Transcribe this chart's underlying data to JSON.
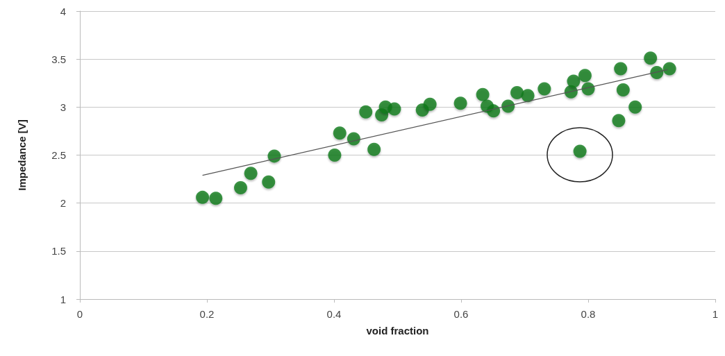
{
  "chart_data": {
    "type": "scatter",
    "xlabel": "void fraction",
    "ylabel": "Impedance [V]",
    "xlim": [
      0,
      1
    ],
    "xticks": [
      0,
      0.2,
      0.4,
      0.6,
      0.8,
      1
    ],
    "ylim": [
      1,
      4
    ],
    "yticks": [
      1,
      1.5,
      2,
      2.5,
      3,
      3.5,
      4
    ],
    "grid": "y",
    "marker": "circle",
    "series": [
      {
        "color": "#0b7a1c",
        "x": [
          0.193,
          0.214,
          0.253,
          0.269,
          0.297,
          0.306,
          0.401,
          0.409,
          0.431,
          0.463,
          0.45,
          0.475,
          0.481,
          0.495,
          0.539,
          0.551,
          0.599,
          0.634,
          0.641,
          0.651,
          0.674,
          0.688,
          0.705,
          0.731,
          0.773,
          0.777,
          0.795,
          0.8,
          0.787,
          0.848,
          0.851,
          0.855,
          0.874,
          0.898,
          0.908,
          0.928
        ],
        "values": [
          2.06,
          2.05,
          2.16,
          2.31,
          2.22,
          2.49,
          2.5,
          2.73,
          2.67,
          2.56,
          2.95,
          2.92,
          3.0,
          2.98,
          2.97,
          3.03,
          3.04,
          3.13,
          3.01,
          2.96,
          3.01,
          3.15,
          3.12,
          3.19,
          3.16,
          3.27,
          3.33,
          3.19,
          2.54,
          2.86,
          3.4,
          3.18,
          3.0,
          3.51,
          3.36,
          3.4
        ]
      },
      {
        "type": "line",
        "color": "#555555",
        "marker": "none",
        "x": [
          0.193,
          0.925
        ],
        "values": [
          2.29,
          3.39
        ]
      }
    ]
  }
}
